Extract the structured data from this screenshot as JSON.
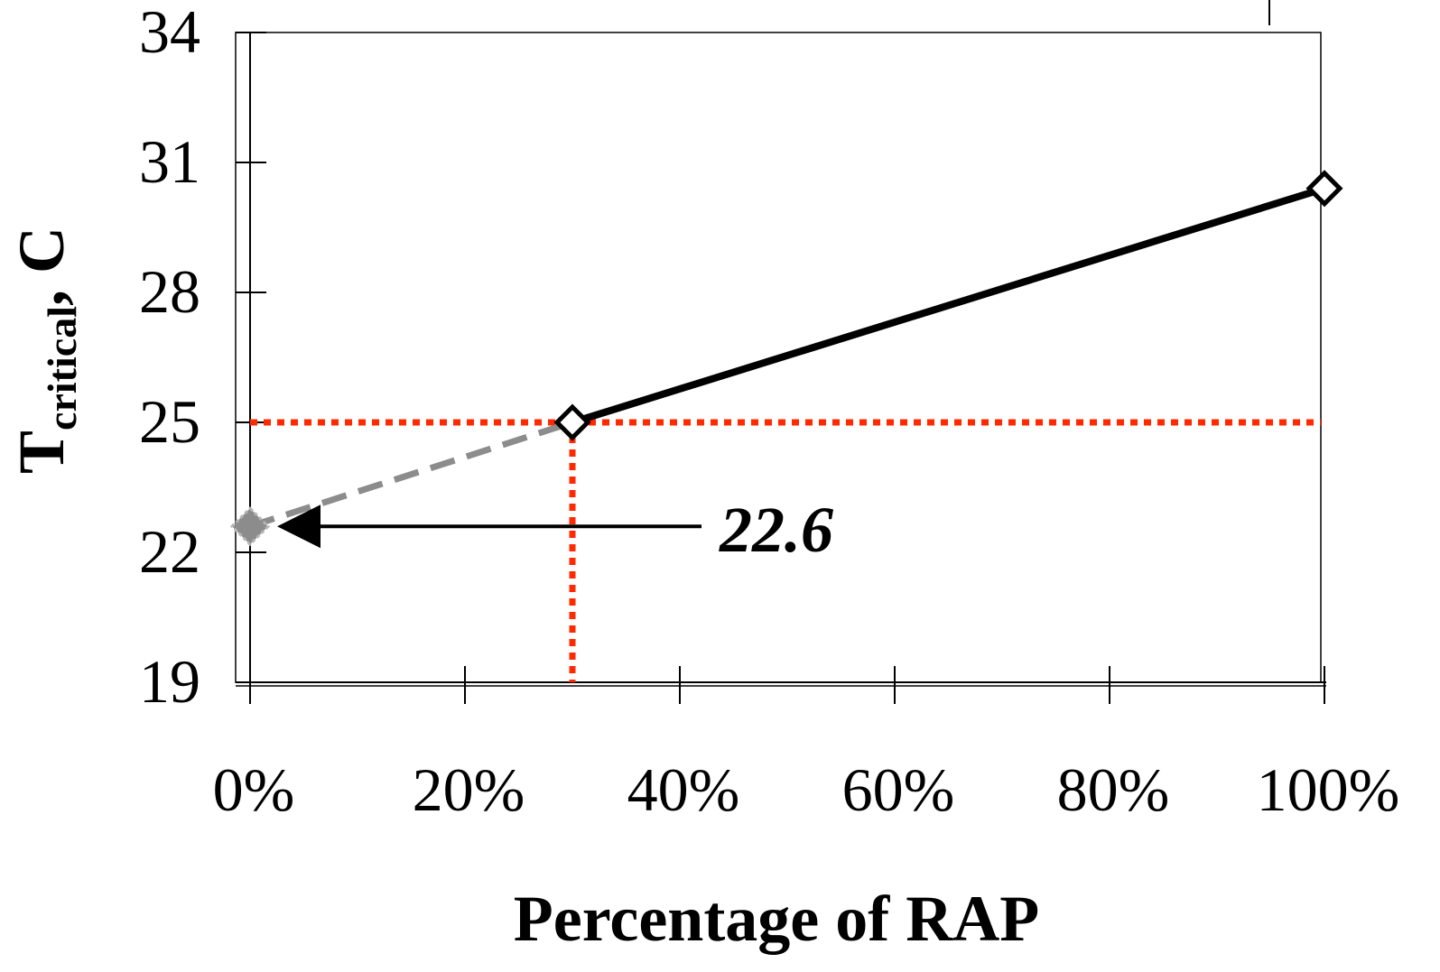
{
  "chart_data": {
    "type": "line",
    "xlabel": "Percentage of RAP",
    "ylabel": {
      "main": "T",
      "subscript": "critical",
      "suffix": ", C"
    },
    "xlim": [
      0,
      100
    ],
    "ylim": [
      19,
      34
    ],
    "x_ticks": [
      0,
      20,
      40,
      60,
      80,
      100
    ],
    "x_tick_labels": [
      "0%",
      "20%",
      "40%",
      "60%",
      "80%",
      "100%"
    ],
    "y_ticks": [
      19,
      22,
      25,
      28,
      31,
      34
    ],
    "y_tick_labels": [
      "19",
      "22",
      "25",
      "28",
      "31",
      "34"
    ],
    "grid": false,
    "series": [
      {
        "style": "solid",
        "marker": "open-diamond",
        "color": "#000000",
        "x": [
          30,
          100
        ],
        "y": [
          25,
          30.4
        ]
      },
      {
        "style": "dashed",
        "marker": "filled-diamond",
        "color": "#8c8c8c",
        "x": [
          0,
          30
        ],
        "y": [
          22.6,
          25
        ]
      }
    ],
    "reference_lines": {
      "color": "#ff2a00",
      "horizontal_y": 25,
      "vertical_x": 30
    },
    "annotation": {
      "text": "22.6",
      "points_to": {
        "x": 0,
        "y": 22.6
      }
    }
  }
}
